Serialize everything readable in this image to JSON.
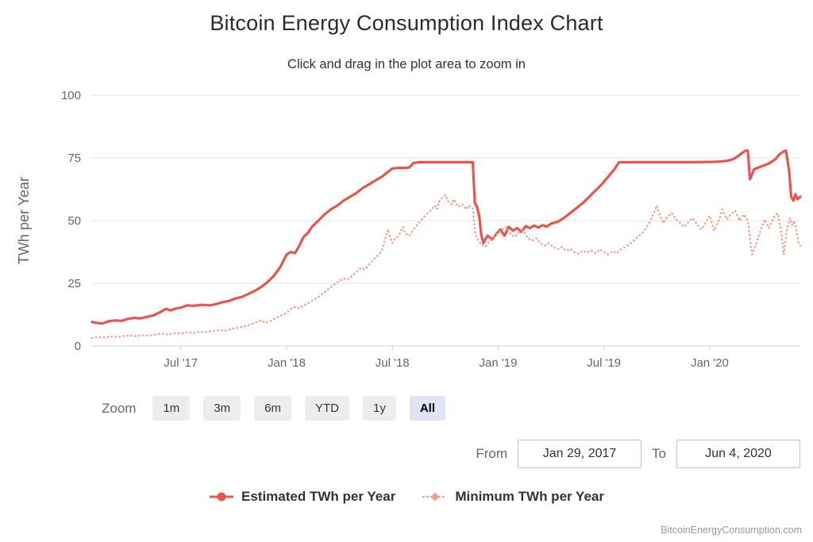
{
  "chart_data": {
    "type": "line",
    "title": "Bitcoin Energy Consumption Index Chart",
    "subtitle": "Click and drag in the plot area to zoom in",
    "ylabel": "TWh per Year",
    "ylim": [
      0,
      100
    ],
    "yticks": [
      0,
      25,
      50,
      75,
      100
    ],
    "x_range_years": [
      2017.077,
      2020.428
    ],
    "x_start_label": "Jan 29, 2017",
    "x_end_label": "Jun 4, 2020",
    "grid": "horizontal",
    "legend_position": "bottom",
    "xticks": [
      {
        "t": 2017.5,
        "label": "Jul '17"
      },
      {
        "t": 2018.0,
        "label": "Jan '18"
      },
      {
        "t": 2018.5,
        "label": "Jul '18"
      },
      {
        "t": 2019.0,
        "label": "Jan '19"
      },
      {
        "t": 2019.5,
        "label": "Jul '19"
      },
      {
        "t": 2020.0,
        "label": "Jan '20"
      }
    ],
    "series": [
      {
        "name": "Estimated TWh per Year",
        "color": "#e4564f",
        "dash": "solid",
        "points": [
          [
            2017.08,
            9.6
          ],
          [
            2017.1,
            9.2
          ],
          [
            2017.13,
            9.0
          ],
          [
            2017.16,
            9.9
          ],
          [
            2017.19,
            10.2
          ],
          [
            2017.22,
            10.0
          ],
          [
            2017.25,
            10.8
          ],
          [
            2017.28,
            11.2
          ],
          [
            2017.31,
            11.0
          ],
          [
            2017.34,
            11.6
          ],
          [
            2017.37,
            12.2
          ],
          [
            2017.4,
            13.4
          ],
          [
            2017.43,
            14.8
          ],
          [
            2017.45,
            14.2
          ],
          [
            2017.48,
            15.0
          ],
          [
            2017.5,
            15.3
          ],
          [
            2017.53,
            16.2
          ],
          [
            2017.56,
            16.0
          ],
          [
            2017.6,
            16.4
          ],
          [
            2017.64,
            16.2
          ],
          [
            2017.67,
            16.8
          ],
          [
            2017.7,
            17.5
          ],
          [
            2017.73,
            18.0
          ],
          [
            2017.76,
            19.0
          ],
          [
            2017.79,
            19.6
          ],
          [
            2017.82,
            20.8
          ],
          [
            2017.85,
            22.0
          ],
          [
            2017.88,
            23.5
          ],
          [
            2017.91,
            25.5
          ],
          [
            2017.94,
            28.0
          ],
          [
            2017.97,
            31.5
          ],
          [
            2018.0,
            36.5
          ],
          [
            2018.02,
            37.5
          ],
          [
            2018.04,
            37.0
          ],
          [
            2018.06,
            40.0
          ],
          [
            2018.08,
            43.5
          ],
          [
            2018.1,
            45.0
          ],
          [
            2018.12,
            47.5
          ],
          [
            2018.15,
            50.0
          ],
          [
            2018.18,
            52.5
          ],
          [
            2018.21,
            54.5
          ],
          [
            2018.24,
            56.0
          ],
          [
            2018.27,
            58.0
          ],
          [
            2018.3,
            59.5
          ],
          [
            2018.33,
            61.0
          ],
          [
            2018.36,
            63.0
          ],
          [
            2018.39,
            64.5
          ],
          [
            2018.42,
            66.0
          ],
          [
            2018.45,
            67.5
          ],
          [
            2018.48,
            69.5
          ],
          [
            2018.5,
            70.8
          ],
          [
            2018.53,
            71.0
          ],
          [
            2018.56,
            71.0
          ],
          [
            2018.58,
            71.2
          ],
          [
            2018.6,
            73.0
          ],
          [
            2018.63,
            73.3
          ],
          [
            2018.7,
            73.3
          ],
          [
            2018.78,
            73.3
          ],
          [
            2018.85,
            73.3
          ],
          [
            2018.88,
            73.3
          ],
          [
            2018.89,
            57.0
          ],
          [
            2018.9,
            55.5
          ],
          [
            2018.91,
            52.0
          ],
          [
            2018.92,
            44.5
          ],
          [
            2018.93,
            41.0
          ],
          [
            2018.95,
            44.0
          ],
          [
            2018.97,
            42.5
          ],
          [
            2018.99,
            44.5
          ],
          [
            2019.01,
            46.5
          ],
          [
            2019.03,
            44.0
          ],
          [
            2019.05,
            47.5
          ],
          [
            2019.07,
            46.0
          ],
          [
            2019.09,
            47.0
          ],
          [
            2019.11,
            45.5
          ],
          [
            2019.13,
            47.8
          ],
          [
            2019.15,
            47.0
          ],
          [
            2019.17,
            48.0
          ],
          [
            2019.19,
            47.2
          ],
          [
            2019.21,
            48.2
          ],
          [
            2019.23,
            47.6
          ],
          [
            2019.25,
            48.8
          ],
          [
            2019.28,
            49.5
          ],
          [
            2019.31,
            51.0
          ],
          [
            2019.34,
            53.0
          ],
          [
            2019.37,
            55.0
          ],
          [
            2019.4,
            57.0
          ],
          [
            2019.43,
            59.5
          ],
          [
            2019.46,
            62.0
          ],
          [
            2019.49,
            64.5
          ],
          [
            2019.52,
            67.5
          ],
          [
            2019.55,
            70.5
          ],
          [
            2019.57,
            73.2
          ],
          [
            2019.62,
            73.3
          ],
          [
            2019.7,
            73.3
          ],
          [
            2019.8,
            73.3
          ],
          [
            2019.9,
            73.3
          ],
          [
            2020.0,
            73.4
          ],
          [
            2020.04,
            73.5
          ],
          [
            2020.08,
            73.8
          ],
          [
            2020.11,
            74.5
          ],
          [
            2020.13,
            75.5
          ],
          [
            2020.15,
            76.8
          ],
          [
            2020.17,
            77.9
          ],
          [
            2020.18,
            77.9
          ],
          [
            2020.19,
            66.5
          ],
          [
            2020.21,
            70.5
          ],
          [
            2020.24,
            71.5
          ],
          [
            2020.28,
            72.8
          ],
          [
            2020.31,
            74.5
          ],
          [
            2020.33,
            76.5
          ],
          [
            2020.35,
            77.6
          ],
          [
            2020.36,
            77.9
          ],
          [
            2020.375,
            70.0
          ],
          [
            2020.385,
            59.5
          ],
          [
            2020.395,
            58.0
          ],
          [
            2020.405,
            60.5
          ],
          [
            2020.415,
            58.5
          ],
          [
            2020.428,
            59.5
          ]
        ]
      },
      {
        "name": "Minimum TWh per Year",
        "color": "#f2a18e",
        "dash": "dot",
        "points": [
          [
            2017.08,
            3.2
          ],
          [
            2017.11,
            3.6
          ],
          [
            2017.14,
            3.3
          ],
          [
            2017.17,
            3.8
          ],
          [
            2017.2,
            3.5
          ],
          [
            2017.23,
            4.0
          ],
          [
            2017.26,
            4.2
          ],
          [
            2017.29,
            3.9
          ],
          [
            2017.32,
            4.3
          ],
          [
            2017.35,
            4.1
          ],
          [
            2017.38,
            4.6
          ],
          [
            2017.41,
            4.9
          ],
          [
            2017.44,
            4.6
          ],
          [
            2017.47,
            5.1
          ],
          [
            2017.5,
            5.0
          ],
          [
            2017.53,
            5.4
          ],
          [
            2017.56,
            5.2
          ],
          [
            2017.59,
            5.7
          ],
          [
            2017.62,
            5.5
          ],
          [
            2017.65,
            6.0
          ],
          [
            2017.68,
            6.3
          ],
          [
            2017.71,
            6.1
          ],
          [
            2017.74,
            6.8
          ],
          [
            2017.77,
            7.2
          ],
          [
            2017.8,
            7.8
          ],
          [
            2017.83,
            8.6
          ],
          [
            2017.86,
            9.6
          ],
          [
            2017.88,
            10.2
          ],
          [
            2017.9,
            9.2
          ],
          [
            2017.92,
            9.8
          ],
          [
            2017.94,
            10.8
          ],
          [
            2017.96,
            11.6
          ],
          [
            2017.98,
            12.4
          ],
          [
            2018.0,
            13.2
          ],
          [
            2018.02,
            14.8
          ],
          [
            2018.04,
            15.6
          ],
          [
            2018.06,
            15.0
          ],
          [
            2018.08,
            16.2
          ],
          [
            2018.1,
            17.0
          ],
          [
            2018.12,
            18.0
          ],
          [
            2018.15,
            19.5
          ],
          [
            2018.18,
            21.5
          ],
          [
            2018.21,
            23.5
          ],
          [
            2018.24,
            25.5
          ],
          [
            2018.27,
            27.0
          ],
          [
            2018.29,
            26.5
          ],
          [
            2018.31,
            28.0
          ],
          [
            2018.33,
            29.5
          ],
          [
            2018.35,
            31.0
          ],
          [
            2018.37,
            30.5
          ],
          [
            2018.39,
            32.5
          ],
          [
            2018.41,
            34.5
          ],
          [
            2018.43,
            36.0
          ],
          [
            2018.45,
            38.0
          ],
          [
            2018.46,
            41.0
          ],
          [
            2018.47,
            44.0
          ],
          [
            2018.48,
            46.5
          ],
          [
            2018.49,
            43.5
          ],
          [
            2018.5,
            41.0
          ],
          [
            2018.51,
            42.5
          ],
          [
            2018.53,
            44.0
          ],
          [
            2018.55,
            47.5
          ],
          [
            2018.56,
            45.0
          ],
          [
            2018.58,
            44.0
          ],
          [
            2018.6,
            46.5
          ],
          [
            2018.62,
            48.5
          ],
          [
            2018.64,
            50.5
          ],
          [
            2018.66,
            52.5
          ],
          [
            2018.68,
            54.0
          ],
          [
            2018.7,
            56.0
          ],
          [
            2018.71,
            54.5
          ],
          [
            2018.72,
            57.5
          ],
          [
            2018.74,
            59.5
          ],
          [
            2018.75,
            60.2
          ],
          [
            2018.76,
            58.0
          ],
          [
            2018.78,
            56.5
          ],
          [
            2018.79,
            58.5
          ],
          [
            2018.81,
            55.5
          ],
          [
            2018.83,
            56.5
          ],
          [
            2018.85,
            54.5
          ],
          [
            2018.86,
            56.0
          ],
          [
            2018.88,
            55.0
          ],
          [
            2018.89,
            46.0
          ],
          [
            2018.9,
            43.0
          ],
          [
            2018.92,
            40.5
          ],
          [
            2018.94,
            39.5
          ],
          [
            2018.96,
            42.0
          ],
          [
            2018.98,
            43.5
          ],
          [
            2019.0,
            45.0
          ],
          [
            2019.02,
            46.5
          ],
          [
            2019.04,
            47.5
          ],
          [
            2019.06,
            44.5
          ],
          [
            2019.08,
            43.5
          ],
          [
            2019.1,
            45.5
          ],
          [
            2019.12,
            46.0
          ],
          [
            2019.14,
            43.0
          ],
          [
            2019.16,
            42.0
          ],
          [
            2019.18,
            43.0
          ],
          [
            2019.2,
            41.0
          ],
          [
            2019.22,
            40.0
          ],
          [
            2019.24,
            41.0
          ],
          [
            2019.26,
            39.5
          ],
          [
            2019.28,
            38.5
          ],
          [
            2019.3,
            39.5
          ],
          [
            2019.32,
            38.0
          ],
          [
            2019.34,
            38.8
          ],
          [
            2019.36,
            37.5
          ],
          [
            2019.38,
            36.8
          ],
          [
            2019.4,
            38.0
          ],
          [
            2019.42,
            37.2
          ],
          [
            2019.44,
            38.2
          ],
          [
            2019.46,
            37.0
          ],
          [
            2019.48,
            38.5
          ],
          [
            2019.5,
            37.5
          ],
          [
            2019.52,
            36.5
          ],
          [
            2019.54,
            37.8
          ],
          [
            2019.56,
            37.0
          ],
          [
            2019.58,
            38.5
          ],
          [
            2019.6,
            39.5
          ],
          [
            2019.62,
            40.5
          ],
          [
            2019.64,
            42.0
          ],
          [
            2019.66,
            43.5
          ],
          [
            2019.68,
            45.0
          ],
          [
            2019.7,
            47.0
          ],
          [
            2019.72,
            50.0
          ],
          [
            2019.74,
            54.0
          ],
          [
            2019.75,
            56.0
          ],
          [
            2019.76,
            53.0
          ],
          [
            2019.78,
            49.0
          ],
          [
            2019.8,
            51.5
          ],
          [
            2019.82,
            53.0
          ],
          [
            2019.84,
            50.5
          ],
          [
            2019.86,
            49.0
          ],
          [
            2019.88,
            47.5
          ],
          [
            2019.9,
            49.5
          ],
          [
            2019.92,
            51.0
          ],
          [
            2019.94,
            48.5
          ],
          [
            2019.96,
            46.5
          ],
          [
            2019.98,
            49.0
          ],
          [
            2020.0,
            52.0
          ],
          [
            2020.02,
            46.0
          ],
          [
            2020.04,
            49.5
          ],
          [
            2020.06,
            54.5
          ],
          [
            2020.08,
            50.5
          ],
          [
            2020.1,
            52.5
          ],
          [
            2020.12,
            54.0
          ],
          [
            2020.14,
            50.0
          ],
          [
            2020.16,
            52.5
          ],
          [
            2020.18,
            50.0
          ],
          [
            2020.2,
            36.5
          ],
          [
            2020.22,
            41.0
          ],
          [
            2020.24,
            46.0
          ],
          [
            2020.26,
            50.5
          ],
          [
            2020.28,
            47.0
          ],
          [
            2020.3,
            51.0
          ],
          [
            2020.32,
            53.0
          ],
          [
            2020.335,
            47.0
          ],
          [
            2020.35,
            36.5
          ],
          [
            2020.365,
            46.5
          ],
          [
            2020.38,
            51.0
          ],
          [
            2020.39,
            48.0
          ],
          [
            2020.4,
            50.0
          ],
          [
            2020.41,
            46.0
          ],
          [
            2020.42,
            41.0
          ],
          [
            2020.428,
            40.0
          ]
        ]
      }
    ],
    "axis_colors": {
      "grid": "#e6e6e6",
      "axis_line": "#ccd6eb",
      "tick_text": "#666666",
      "axis_title_text": "#666666"
    }
  },
  "range_selector": {
    "zoom_label": "Zoom",
    "buttons": [
      {
        "label": "1m",
        "selected": false
      },
      {
        "label": "3m",
        "selected": false
      },
      {
        "label": "6m",
        "selected": false
      },
      {
        "label": "YTD",
        "selected": false
      },
      {
        "label": "1y",
        "selected": false
      },
      {
        "label": "All",
        "selected": true
      }
    ],
    "from_label": "From",
    "from_value": "Jan 29, 2017",
    "to_label": "To",
    "to_value": "Jun 4, 2020"
  },
  "credits": {
    "label": "BitcoinEnergyConsumption.com"
  }
}
